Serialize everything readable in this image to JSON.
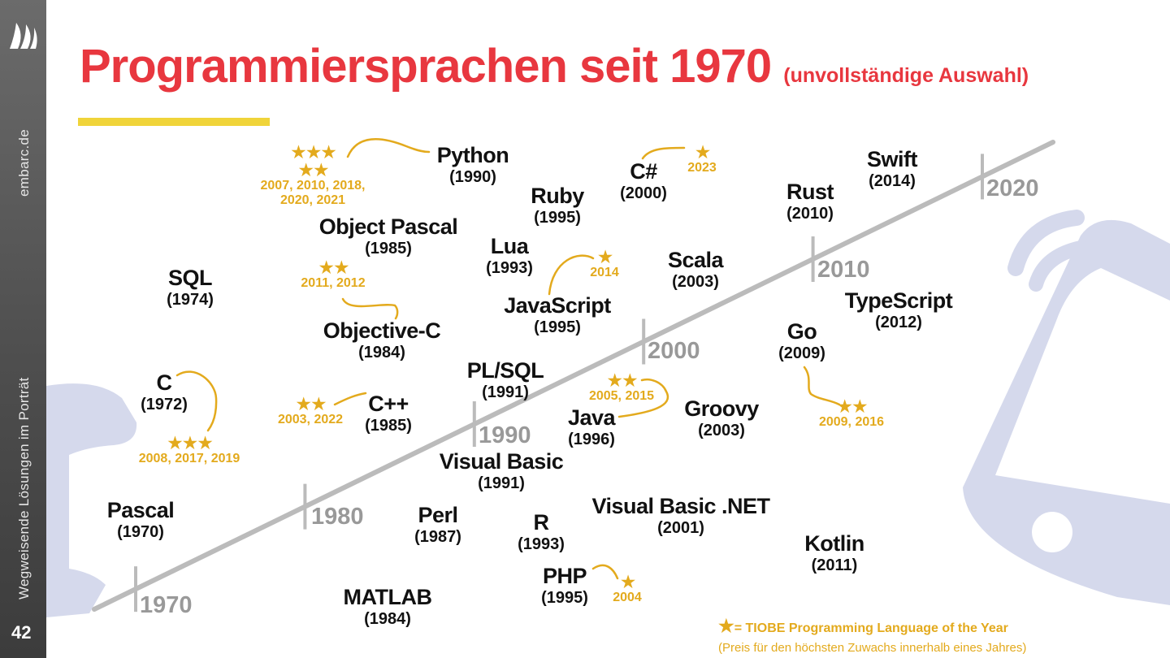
{
  "sidebar": {
    "url": "embarc.de",
    "tagline": "Wegweisende Lösungen im Porträt",
    "page_number": "42",
    "logo_icon": "sail-logo-icon"
  },
  "title": {
    "main": "Programmiersprachen seit 1970",
    "sub": "(unvollständige Auswahl)"
  },
  "colors": {
    "title": "#e8373f",
    "accent_bar": "#f0d43a",
    "award": "#e3aa1d",
    "timeline": "#bbbbbb",
    "decade_label": "#999999",
    "background_art": "#d5d9ec"
  },
  "timeline": {
    "decades": [
      "1970",
      "1980",
      "1990",
      "2000",
      "2010",
      "2020"
    ]
  },
  "languages": [
    {
      "name": "Python",
      "year": "(1990)"
    },
    {
      "name": "C#",
      "year": "(2000)"
    },
    {
      "name": "Swift",
      "year": "(2014)"
    },
    {
      "name": "Ruby",
      "year": "(1995)"
    },
    {
      "name": "Rust",
      "year": "(2010)"
    },
    {
      "name": "Object Pascal",
      "year": "(1985)"
    },
    {
      "name": "Lua",
      "year": "(1993)"
    },
    {
      "name": "Scala",
      "year": "(2003)"
    },
    {
      "name": "SQL",
      "year": "(1974)"
    },
    {
      "name": "JavaScript",
      "year": "(1995)"
    },
    {
      "name": "TypeScript",
      "year": "(2012)"
    },
    {
      "name": "Objective-C",
      "year": "(1984)"
    },
    {
      "name": "Go",
      "year": "(2009)"
    },
    {
      "name": "PL/SQL",
      "year": "(1991)"
    },
    {
      "name": "C",
      "year": "(1972)"
    },
    {
      "name": "C++",
      "year": "(1985)"
    },
    {
      "name": "Java",
      "year": "(1996)"
    },
    {
      "name": "Groovy",
      "year": "(2003)"
    },
    {
      "name": "Visual Basic",
      "year": "(1991)"
    },
    {
      "name": "Pascal",
      "year": "(1970)"
    },
    {
      "name": "Perl",
      "year": "(1987)"
    },
    {
      "name": "R",
      "year": "(1993)"
    },
    {
      "name": "Visual Basic .NET",
      "year": "(2001)"
    },
    {
      "name": "Kotlin",
      "year": "(2011)"
    },
    {
      "name": "PHP",
      "year": "(1995)"
    },
    {
      "name": "MATLAB",
      "year": "(1984)"
    }
  ],
  "awards": [
    {
      "language": "Python",
      "stars": 5,
      "years": [
        "2007, 2010, 2018,",
        "2020, 2021"
      ]
    },
    {
      "language": "C#",
      "stars": 1,
      "years": [
        "2023"
      ]
    },
    {
      "language": "Objective-C",
      "stars": 2,
      "years": [
        "2011, 2012"
      ]
    },
    {
      "language": "JavaScript",
      "stars": 1,
      "years": [
        "2014"
      ]
    },
    {
      "language": "C",
      "stars": 3,
      "years": [
        "2008, 2017, 2019"
      ]
    },
    {
      "language": "C++",
      "stars": 2,
      "years": [
        "2003, 2022"
      ]
    },
    {
      "language": "Java",
      "stars": 2,
      "years": [
        "2005, 2015"
      ]
    },
    {
      "language": "Go",
      "stars": 2,
      "years": [
        "2009, 2016"
      ]
    },
    {
      "language": "PHP",
      "stars": 1,
      "years": [
        "2004"
      ]
    }
  ],
  "legend": {
    "star_icon": "star-icon",
    "line1": "= TIOBE Programming Language of the Year",
    "line2": "(Preis für den höchsten Zuwachs innerhalb eines Jahres)"
  }
}
